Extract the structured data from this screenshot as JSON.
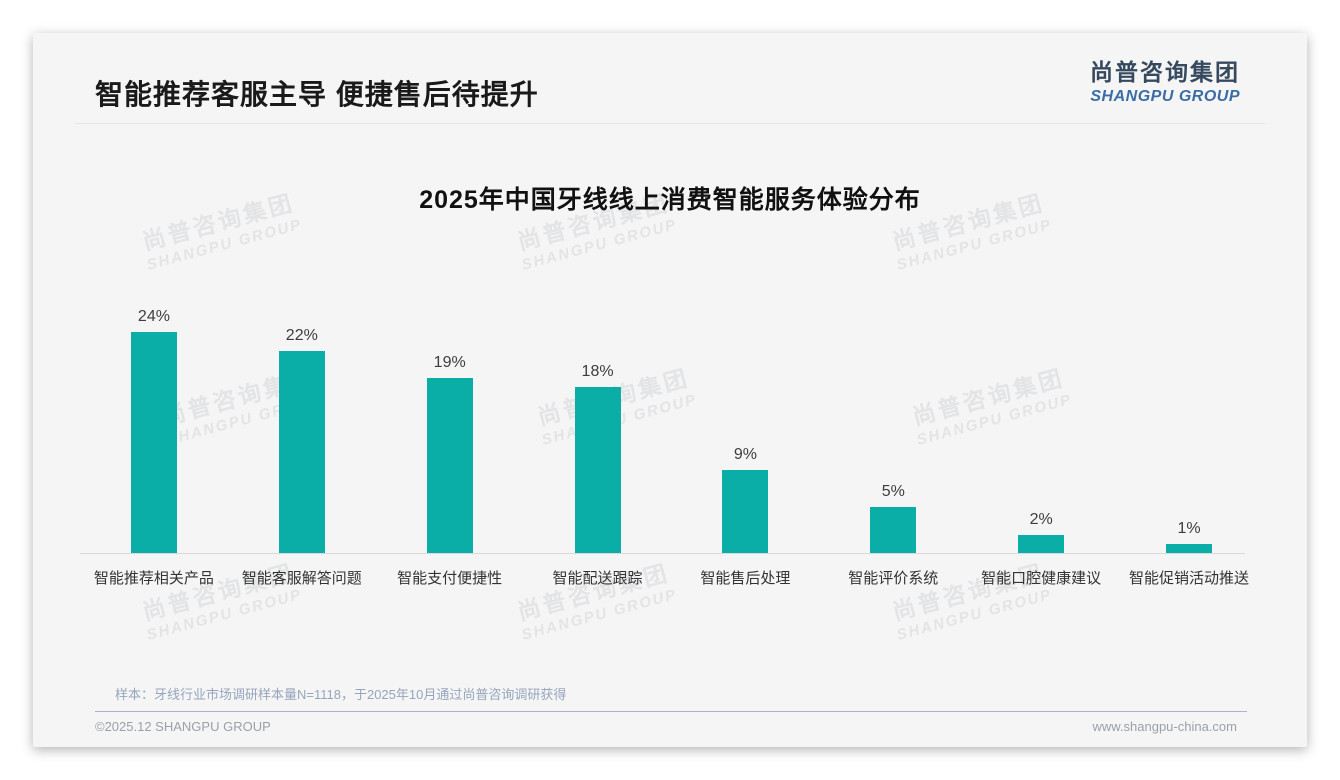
{
  "header": {
    "title": "智能推荐客服主导 便捷售后待提升",
    "logo_cn": "尚普咨询集团",
    "logo_en": "SHANGPU GROUP"
  },
  "watermark": {
    "cn": "尚普咨询集团",
    "en": "SHANGPU GROUP"
  },
  "chart_data": {
    "type": "bar",
    "title": "2025年中国牙线线上消费智能服务体验分布",
    "categories": [
      "智能推荐相关产品",
      "智能客服解答问题",
      "智能支付便捷性",
      "智能配送跟踪",
      "智能售后处理",
      "智能评价系统",
      "智能口腔健康建议",
      "智能促销活动推送"
    ],
    "values": [
      24,
      22,
      19,
      18,
      9,
      5,
      2,
      1
    ],
    "unit": "%",
    "value_labels": [
      "24%",
      "22%",
      "19%",
      "18%",
      "9%",
      "5%",
      "2%",
      "1%"
    ],
    "bar_color": "#0baea6",
    "xlabel": "",
    "ylabel": "",
    "ylim": [
      0,
      25
    ],
    "grid": false,
    "legend": "none"
  },
  "footer": {
    "note": "样本：牙线行业市场调研样本量N=1118，于2025年10月通过尚普咨询调研获得",
    "copyright": "©2025.12 SHANGPU GROUP",
    "website": "www.shangpu-china.com"
  },
  "colors": {
    "bar": "#0baea6",
    "card_background": "#f5f5f6",
    "logo_dark": "#36495e",
    "logo_blue": "#3a6ca5",
    "footnote_text": "#96a5bc"
  }
}
